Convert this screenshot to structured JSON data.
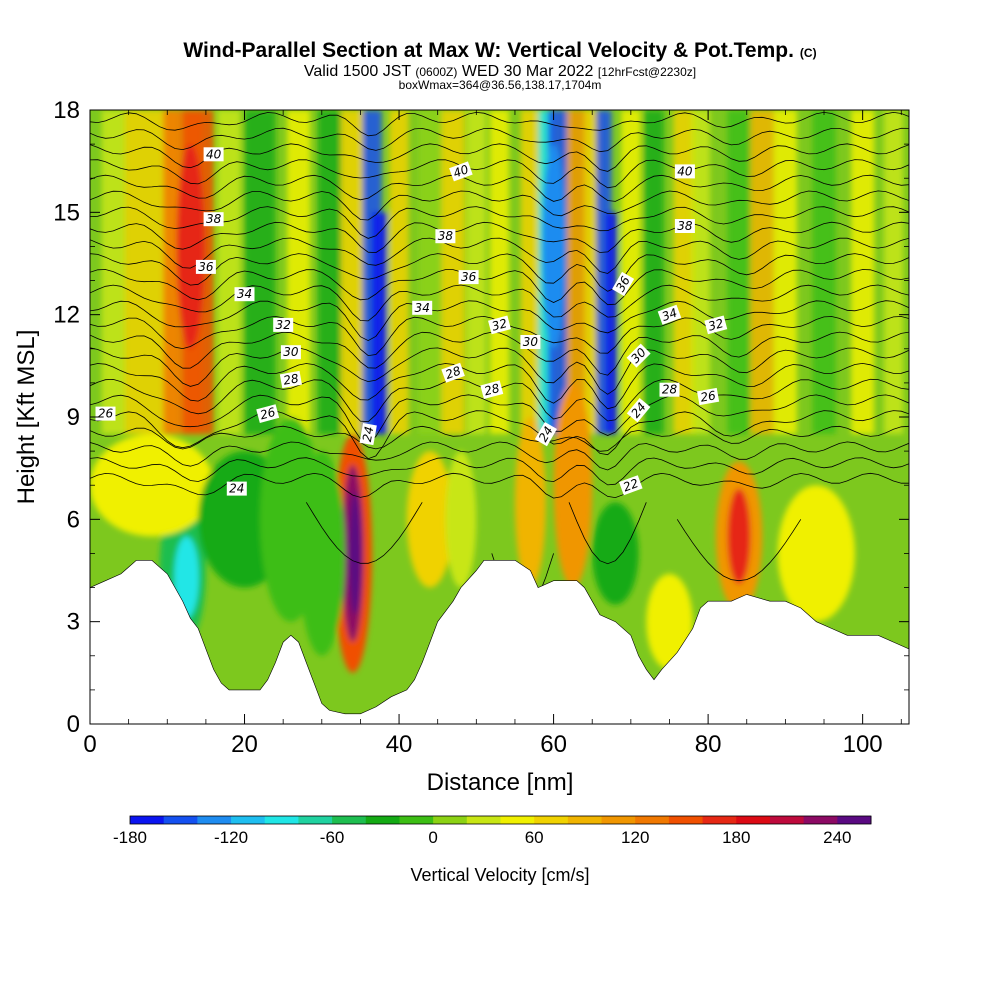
{
  "title": {
    "main": "Wind-Parallel Section at Max W: Vertical Velocity & Pot.Temp.",
    "copyright": "(C)",
    "valid_prefix": "Valid 1500 JST",
    "valid_z": "(0600Z)",
    "valid_date": "WED 30 Mar 2022",
    "valid_fcst": "[12hrFcst@2230z]",
    "box": "boxWmax=364@36.56,138.17,1704m"
  },
  "chart_data": {
    "type": "heatmap",
    "xlabel": "Distance [nm]",
    "ylabel": "Height [Kft MSL]",
    "xlim": [
      0,
      106
    ],
    "ylim": [
      0,
      18
    ],
    "x_ticks": [
      0,
      20,
      40,
      60,
      80,
      100
    ],
    "y_ticks": [
      0,
      3,
      6,
      9,
      12,
      15,
      18
    ],
    "colorbar": {
      "label": "Vertical Velocity [cm/s]",
      "range": [
        -180,
        260
      ],
      "step": 20,
      "tick_values": [
        -180,
        -120,
        -60,
        0,
        60,
        120,
        180,
        240
      ],
      "colors": [
        "#0a14f0",
        "#1450f0",
        "#1e8cf0",
        "#1ebef0",
        "#20e6e6",
        "#20d2a0",
        "#1ebe50",
        "#14aa14",
        "#3cbe14",
        "#8cd214",
        "#c8e614",
        "#f0f000",
        "#f0d200",
        "#f0b400",
        "#f09600",
        "#f07800",
        "#f05000",
        "#e62814",
        "#dc0a14",
        "#be0a3c",
        "#8c0a64",
        "#5a0a82"
      ]
    },
    "terrain": [
      [
        0,
        4
      ],
      [
        2,
        4.2
      ],
      [
        4,
        4.4
      ],
      [
        6,
        4.8
      ],
      [
        8,
        4.8
      ],
      [
        10,
        4.4
      ],
      [
        12,
        3.6
      ],
      [
        13,
        3.1
      ],
      [
        14,
        2.8
      ],
      [
        15,
        2.2
      ],
      [
        16,
        1.6
      ],
      [
        17,
        1.2
      ],
      [
        18,
        1.0
      ],
      [
        20,
        1.0
      ],
      [
        22,
        1.0
      ],
      [
        23,
        1.3
      ],
      [
        24,
        1.8
      ],
      [
        25,
        2.4
      ],
      [
        26,
        2.6
      ],
      [
        27,
        2.4
      ],
      [
        28,
        1.8
      ],
      [
        29,
        1.2
      ],
      [
        30,
        0.6
      ],
      [
        31,
        0.4
      ],
      [
        33,
        0.3
      ],
      [
        35,
        0.3
      ],
      [
        37,
        0.5
      ],
      [
        39,
        0.8
      ],
      [
        41,
        1.0
      ],
      [
        42,
        1.3
      ],
      [
        43,
        1.8
      ],
      [
        44,
        2.4
      ],
      [
        45,
        3.0
      ],
      [
        47,
        3.6
      ],
      [
        48,
        4.0
      ],
      [
        50,
        4.5
      ],
      [
        51,
        4.8
      ],
      [
        55,
        4.8
      ],
      [
        57,
        4.5
      ],
      [
        58,
        4.0
      ],
      [
        60,
        4.2
      ],
      [
        63,
        4.2
      ],
      [
        64,
        4.0
      ],
      [
        65,
        3.6
      ],
      [
        66,
        3.2
      ],
      [
        68,
        3.0
      ],
      [
        70,
        2.6
      ],
      [
        71,
        2.0
      ],
      [
        72,
        1.6
      ],
      [
        73,
        1.3
      ],
      [
        74,
        1.6
      ],
      [
        76,
        2.1
      ],
      [
        78,
        2.8
      ],
      [
        79,
        3.4
      ],
      [
        80,
        3.6
      ],
      [
        83,
        3.6
      ],
      [
        85,
        3.8
      ],
      [
        88,
        3.6
      ],
      [
        90,
        3.6
      ],
      [
        92,
        3.4
      ],
      [
        94,
        3.0
      ],
      [
        96,
        2.8
      ],
      [
        98,
        2.6
      ],
      [
        102,
        2.6
      ],
      [
        104,
        2.4
      ],
      [
        106,
        2.2
      ]
    ],
    "velocity_features": [
      {
        "x": 34,
        "z": 5.0,
        "w": 250
      },
      {
        "x": 36,
        "z": 14.0,
        "w": -180
      },
      {
        "x": 60,
        "z": 15.0,
        "w": -140
      },
      {
        "x": 67,
        "z": 12.0,
        "w": -170
      },
      {
        "x": 13,
        "z": 14.0,
        "w": 140
      },
      {
        "x": 84,
        "z": 5.5,
        "w": 150
      },
      {
        "x": 12,
        "z": 5.5,
        "w": -90
      },
      {
        "x": 63,
        "z": 9.0,
        "w": 110
      }
    ],
    "contour_labels": [
      {
        "text": "40",
        "x": 16,
        "z": 16.7,
        "angle": 0
      },
      {
        "text": "40",
        "x": 48,
        "z": 16.2,
        "angle": -20
      },
      {
        "text": "40",
        "x": 77,
        "z": 16.2,
        "angle": 0
      },
      {
        "text": "38",
        "x": 16,
        "z": 14.8,
        "angle": 0
      },
      {
        "text": "38",
        "x": 46,
        "z": 14.3,
        "angle": 0
      },
      {
        "text": "38",
        "x": 77,
        "z": 14.6,
        "angle": 0
      },
      {
        "text": "36",
        "x": 15,
        "z": 13.4,
        "angle": 0
      },
      {
        "text": "36",
        "x": 49,
        "z": 13.1,
        "angle": 0
      },
      {
        "text": "36",
        "x": 69,
        "z": 12.9,
        "angle": -60
      },
      {
        "text": "34",
        "x": 20,
        "z": 12.6,
        "angle": 0
      },
      {
        "text": "34",
        "x": 43,
        "z": 12.2,
        "angle": 0
      },
      {
        "text": "34",
        "x": 75,
        "z": 12.0,
        "angle": -20
      },
      {
        "text": "32",
        "x": 25,
        "z": 11.7,
        "angle": 0
      },
      {
        "text": "32",
        "x": 53,
        "z": 11.7,
        "angle": -15
      },
      {
        "text": "32",
        "x": 81,
        "z": 11.7,
        "angle": -15
      },
      {
        "text": "30",
        "x": 26,
        "z": 10.9,
        "angle": 0
      },
      {
        "text": "30",
        "x": 57,
        "z": 11.2,
        "angle": 0
      },
      {
        "text": "30",
        "x": 71,
        "z": 10.8,
        "angle": -45
      },
      {
        "text": "28",
        "x": 26,
        "z": 10.1,
        "angle": -10
      },
      {
        "text": "28",
        "x": 47,
        "z": 10.3,
        "angle": -20
      },
      {
        "text": "28",
        "x": 52,
        "z": 9.8,
        "angle": -15
      },
      {
        "text": "28",
        "x": 75,
        "z": 9.8,
        "angle": 0
      },
      {
        "text": "26",
        "x": 2,
        "z": 9.1,
        "angle": 0
      },
      {
        "text": "26",
        "x": 23,
        "z": 9.1,
        "angle": -15
      },
      {
        "text": "26",
        "x": 80,
        "z": 9.6,
        "angle": -10
      },
      {
        "text": "24",
        "x": 36,
        "z": 8.5,
        "angle": -80
      },
      {
        "text": "24",
        "x": 59,
        "z": 8.5,
        "angle": -60
      },
      {
        "text": "24",
        "x": 71,
        "z": 9.2,
        "angle": -50
      },
      {
        "text": "24",
        "x": 19,
        "z": 6.9,
        "angle": 0
      },
      {
        "text": "22",
        "x": 70,
        "z": 7.0,
        "angle": -20
      }
    ]
  }
}
